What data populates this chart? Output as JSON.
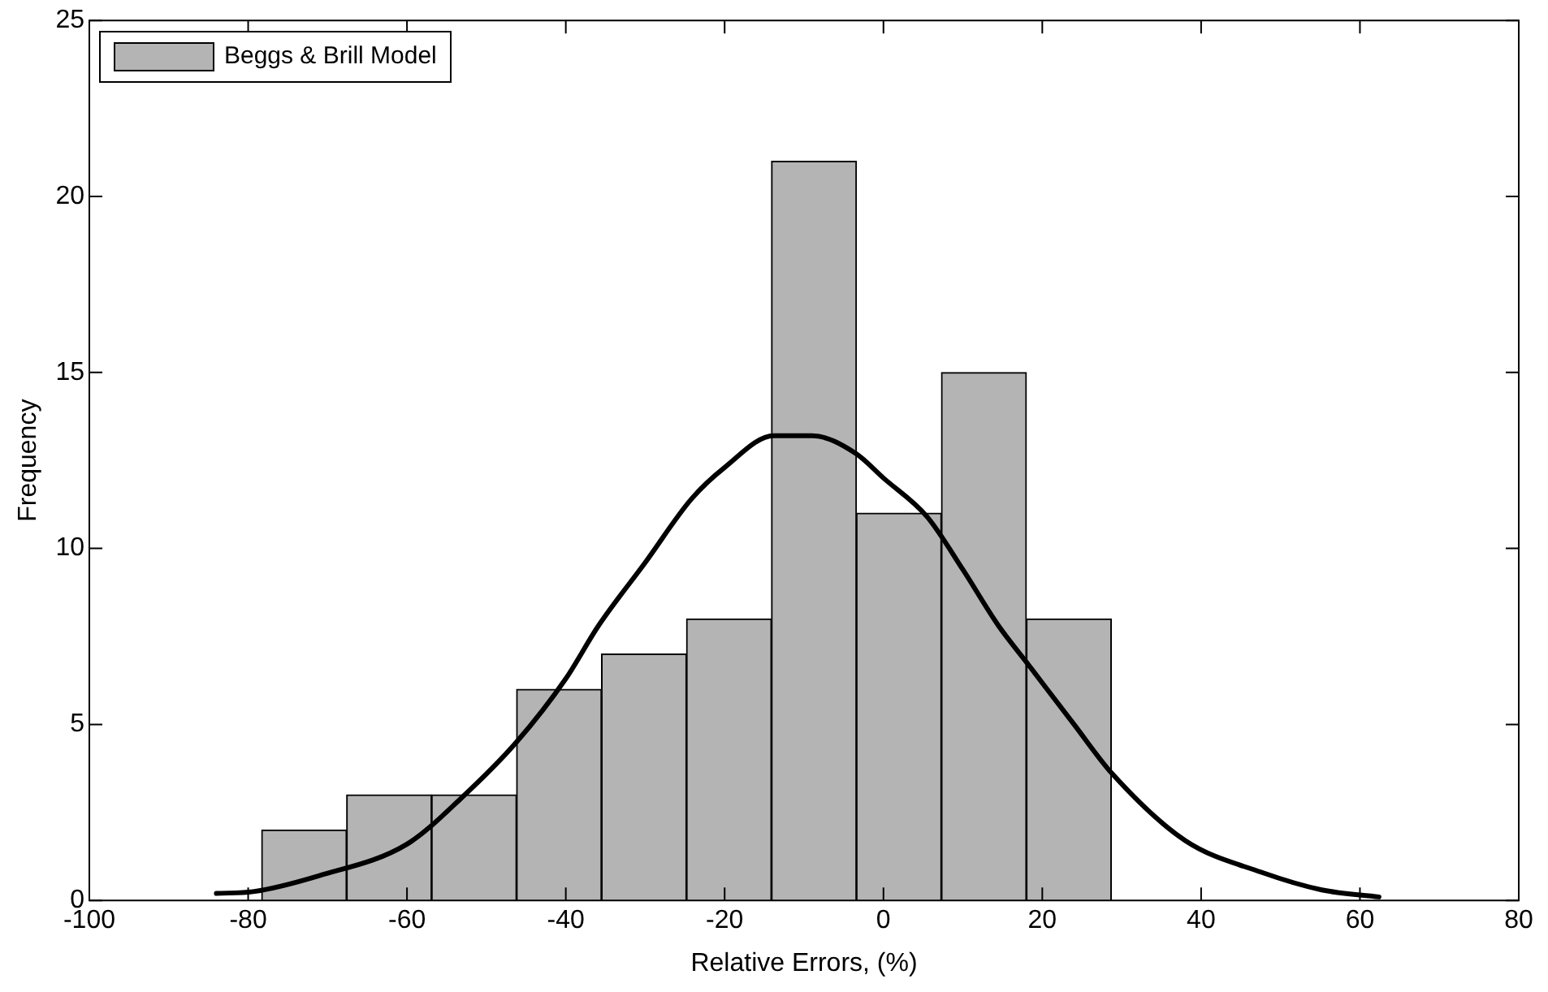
{
  "chart_data": {
    "type": "histogram",
    "xlabel": "Relative Errors, (%)",
    "ylabel": "Frequency",
    "bins": [
      -78.3,
      -67.6,
      -56.9,
      -46.2,
      -35.5,
      -24.8,
      -14.1,
      -3.4,
      7.3,
      18.0,
      28.7
    ],
    "series": [
      {
        "name": "Beggs & Brill Model",
        "color": "#b4b4b4",
        "values": [
          2,
          3,
          3,
          6,
          7,
          8,
          21,
          11,
          15,
          8
        ]
      },
      {
        "type": "line",
        "color": "#000000",
        "x": [
          -84,
          -79.4,
          -71.1,
          -60,
          -53.2,
          -46.2,
          -40,
          -35.9,
          -30,
          -24.2,
          -20,
          -13.8,
          -9,
          -3.5,
          0,
          5.5,
          10,
          14.5,
          17.9,
          24,
          28.8,
          38,
          47.6,
          55.2,
          62.4
        ],
        "values": [
          0.2,
          0.25,
          0.7,
          1.6,
          2.9,
          4.5,
          6.3,
          7.8,
          9.6,
          11.4,
          12.3,
          13.2,
          13.2,
          12.7,
          12,
          10.9,
          9.4,
          7.8,
          6.8,
          5,
          3.6,
          1.7,
          0.8,
          0.3,
          0.1
        ]
      }
    ],
    "xlim": [
      -100,
      80
    ],
    "xticks": [
      -100,
      -80,
      -60,
      -40,
      -20,
      0,
      20,
      40,
      60,
      80
    ],
    "ylim": [
      0,
      25
    ],
    "yticks": [
      0,
      5,
      10,
      15,
      20,
      25
    ],
    "grid": false,
    "legend": "top left",
    "line_style": "solid",
    "marker": "none"
  }
}
